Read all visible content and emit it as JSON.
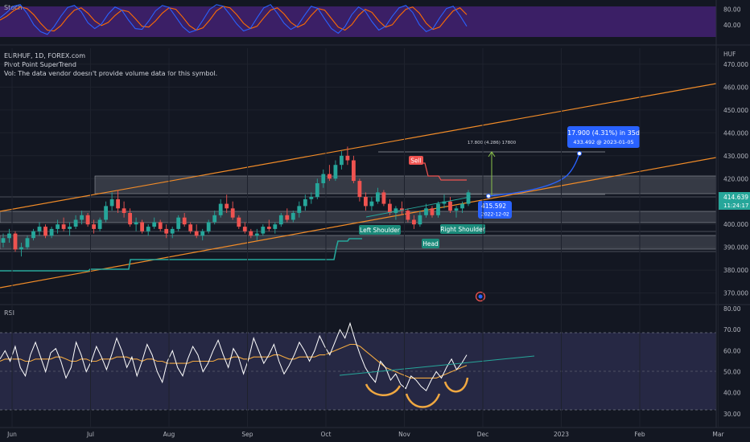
{
  "stoch_panel": {
    "label": "Stoch",
    "axis_ticks": [
      {
        "v": 80,
        "label": "80.00"
      },
      {
        "v": 40,
        "label": "40.00"
      }
    ],
    "k": [
      58,
      72,
      88,
      92,
      70,
      40,
      22,
      15,
      35,
      62,
      85,
      90,
      74,
      45,
      30,
      42,
      68,
      86,
      78,
      52,
      30,
      28,
      50,
      76,
      90,
      85,
      60,
      35,
      20,
      26,
      52,
      80,
      92,
      88,
      66,
      42,
      24,
      30,
      58,
      84,
      92,
      70,
      44,
      28,
      38,
      64,
      88,
      82,
      55,
      30,
      18,
      35,
      66,
      86,
      75,
      48,
      26,
      36,
      62,
      84,
      90,
      72,
      40,
      22,
      30,
      58,
      82,
      88,
      64,
      36
    ],
    "d": [
      52,
      62,
      76,
      86,
      82,
      66,
      44,
      26,
      24,
      38,
      60,
      78,
      84,
      70,
      50,
      38,
      46,
      64,
      78,
      74,
      56,
      36,
      34,
      50,
      70,
      84,
      80,
      60,
      38,
      26,
      32,
      52,
      76,
      88,
      84,
      66,
      44,
      30,
      36,
      58,
      78,
      84,
      68,
      46,
      34,
      42,
      64,
      82,
      78,
      56,
      34,
      26,
      40,
      64,
      80,
      72,
      50,
      34,
      40,
      62,
      80,
      86,
      70,
      44,
      28,
      34,
      56,
      76,
      84,
      66
    ]
  },
  "main_panel": {
    "symbol_line": "EURHUF, 1D, FOREX.com",
    "indicator_line": "Pivot Point SuperTrend",
    "vol_line": "Vol: The data vendor doesn't provide volume data for this symbol.",
    "price_unit": "HUF",
    "price_ticks": [
      {
        "v": 470,
        "label": "470.000"
      },
      {
        "v": 460,
        "label": "460.000"
      },
      {
        "v": 450,
        "label": "450.000"
      },
      {
        "v": 440,
        "label": "440.000"
      },
      {
        "v": 430,
        "label": "430.000"
      },
      {
        "v": 420,
        "label": "420.000"
      },
      {
        "v": 400,
        "label": "400.000"
      },
      {
        "v": 390,
        "label": "390.000"
      },
      {
        "v": 380,
        "label": "380.000"
      },
      {
        "v": 370,
        "label": "370.000"
      }
    ],
    "last_price": {
      "price": "414.639",
      "countdown": "11:24:17",
      "color": "#26a69a"
    },
    "measure_box": {
      "line1": "17.900 (4.31%) in 35d",
      "line2": "433.492 @ 2023-01-05"
    },
    "measure_small_label": "17.800 (4.286) 17800",
    "point_box": {
      "line1": "415.592",
      "line2": "2022-12-02"
    },
    "sell_label": "Sell",
    "pattern_labels": {
      "left": "Left Shoulder",
      "head": "Head",
      "right": "Right Shoulder"
    }
  },
  "rsi_panel": {
    "label": "RSI",
    "axis_ticks": [
      {
        "v": 80,
        "label": "80.00"
      },
      {
        "v": 70,
        "label": "70.00"
      },
      {
        "v": 60,
        "label": "60.00"
      },
      {
        "v": 50,
        "label": "50.00"
      },
      {
        "v": 40,
        "label": "40.00"
      },
      {
        "v": 30,
        "label": "30.00"
      }
    ],
    "band_upper": 70,
    "band_lower": 30,
    "rsi": [
      56,
      60,
      55,
      62,
      52,
      48,
      58,
      64,
      57,
      50,
      59,
      61,
      55,
      47,
      52,
      64,
      58,
      50,
      55,
      62,
      57,
      51,
      58,
      66,
      60,
      52,
      57,
      48,
      55,
      63,
      58,
      50,
      45,
      55,
      60,
      52,
      48,
      56,
      62,
      58,
      50,
      54,
      60,
      65,
      58,
      52,
      61,
      57,
      49,
      56,
      66,
      60,
      54,
      58,
      63,
      55,
      49,
      53,
      58,
      64,
      60,
      55,
      60,
      67,
      62,
      58,
      64,
      70,
      66,
      73,
      65,
      58,
      52,
      48,
      45,
      55,
      52,
      46,
      49,
      44,
      42,
      48,
      46,
      43,
      41,
      46,
      50,
      47,
      52,
      56,
      51,
      54,
      58
    ],
    "rsi_ma": [
      55,
      56,
      56,
      56,
      56,
      55,
      55,
      56,
      56,
      56,
      56,
      57,
      57,
      56,
      55,
      55,
      56,
      56,
      55,
      55,
      56,
      56,
      56,
      57,
      57,
      57,
      56,
      56,
      55,
      56,
      56,
      55,
      55,
      54,
      54,
      54,
      54,
      54,
      55,
      55,
      55,
      55,
      55,
      56,
      56,
      56,
      57,
      57,
      56,
      56,
      57,
      57,
      57,
      57,
      58,
      58,
      57,
      56,
      56,
      57,
      57,
      57,
      57,
      58,
      58,
      59,
      60,
      61,
      62,
      63,
      63,
      62,
      60,
      58,
      56,
      54,
      52,
      51,
      50,
      49,
      48,
      47,
      47,
      47,
      47,
      47,
      47,
      48,
      49,
      50,
      51,
      52,
      53
    ]
  },
  "time_axis": {
    "labels": [
      "Jun",
      "Jul",
      "Aug",
      "Sep",
      "Oct",
      "Nov",
      "Dec",
      "2023",
      "Feb",
      "Mar"
    ]
  },
  "chart_data": [
    {
      "type": "line",
      "title": "Stoch",
      "ylim": [
        0,
        100
      ],
      "series": [
        {
          "name": "%K",
          "color": "#2962ff"
        },
        {
          "name": "%D",
          "color": "#ff6d00"
        }
      ],
      "note_values_in": "stoch_panel.k / stoch_panel.d"
    },
    {
      "type": "candlestick",
      "title": "EURHUF, 1D, FOREX.com",
      "ylim": [
        366,
        477
      ],
      "ylabel": "HUF",
      "last_price": 414.639,
      "candles": [
        [
          392,
          396,
          390,
          394
        ],
        [
          394,
          398,
          392,
          396
        ],
        [
          396,
          397,
          388,
          389
        ],
        [
          389,
          392,
          386,
          390
        ],
        [
          390,
          395,
          389,
          394
        ],
        [
          394,
          398,
          393,
          397
        ],
        [
          397,
          401,
          395,
          399
        ],
        [
          399,
          400,
          394,
          395
        ],
        [
          395,
          399,
          394,
          398
        ],
        [
          398,
          402,
          396,
          400
        ],
        [
          400,
          403,
          397,
          398
        ],
        [
          398,
          401,
          395,
          399
        ],
        [
          399,
          404,
          398,
          402
        ],
        [
          402,
          406,
          400,
          404
        ],
        [
          404,
          405,
          399,
          400
        ],
        [
          400,
          402,
          396,
          398
        ],
        [
          398,
          403,
          397,
          402
        ],
        [
          402,
          410,
          401,
          408
        ],
        [
          408,
          414,
          406,
          411
        ],
        [
          411,
          415,
          405,
          407
        ],
        [
          407,
          410,
          403,
          405
        ],
        [
          405,
          407,
          399,
          400
        ],
        [
          400,
          403,
          397,
          401
        ],
        [
          401,
          402,
          396,
          397
        ],
        [
          397,
          400,
          395,
          399
        ],
        [
          399,
          403,
          398,
          401
        ],
        [
          401,
          402,
          397,
          398
        ],
        [
          398,
          400,
          394,
          396
        ],
        [
          396,
          399,
          394,
          398
        ],
        [
          398,
          404,
          397,
          403
        ],
        [
          403,
          405,
          399,
          400
        ],
        [
          400,
          401,
          396,
          397
        ],
        [
          397,
          400,
          394,
          395
        ],
        [
          395,
          398,
          393,
          397
        ],
        [
          397,
          402,
          396,
          401
        ],
        [
          401,
          406,
          400,
          404
        ],
        [
          404,
          411,
          403,
          409
        ],
        [
          409,
          413,
          405,
          407
        ],
        [
          407,
          410,
          402,
          403
        ],
        [
          403,
          404,
          398,
          399
        ],
        [
          399,
          401,
          396,
          397
        ],
        [
          397,
          398,
          394,
          395
        ],
        [
          395,
          398,
          393,
          396
        ],
        [
          396,
          400,
          395,
          399
        ],
        [
          399,
          402,
          397,
          398
        ],
        [
          398,
          401,
          396,
          400
        ],
        [
          400,
          405,
          399,
          404
        ],
        [
          404,
          407,
          401,
          402
        ],
        [
          402,
          406,
          401,
          405
        ],
        [
          405,
          410,
          403,
          408
        ],
        [
          408,
          413,
          406,
          411
        ],
        [
          411,
          414,
          409,
          412
        ],
        [
          412,
          420,
          411,
          418
        ],
        [
          418,
          424,
          416,
          422
        ],
        [
          422,
          426,
          419,
          420
        ],
        [
          420,
          428,
          419,
          426
        ],
        [
          426,
          432,
          424,
          430
        ],
        [
          430,
          434,
          426,
          428
        ],
        [
          428,
          430,
          418,
          419
        ],
        [
          419,
          420,
          410,
          412
        ],
        [
          412,
          414,
          406,
          408
        ],
        [
          408,
          412,
          406,
          410
        ],
        [
          410,
          416,
          409,
          414
        ],
        [
          414,
          415,
          408,
          409
        ],
        [
          409,
          411,
          404,
          405
        ],
        [
          405,
          408,
          402,
          407
        ],
        [
          407,
          410,
          404,
          406
        ],
        [
          406,
          407,
          401,
          402
        ],
        [
          402,
          404,
          398,
          400
        ],
        [
          400,
          406,
          399,
          404
        ],
        [
          404,
          409,
          403,
          407
        ],
        [
          407,
          408,
          403,
          404
        ],
        [
          404,
          410,
          403,
          409
        ],
        [
          409,
          413,
          407,
          410
        ],
        [
          410,
          412,
          405,
          406
        ],
        [
          406,
          408,
          403,
          407
        ],
        [
          407,
          410,
          405,
          409
        ],
        [
          409,
          415,
          408,
          414
        ]
      ],
      "supertrend": {
        "color": "#26a69a"
      },
      "sell_signal": {
        "label": "Sell"
      },
      "measure": {
        "change": 17.9,
        "percent": 4.31,
        "days": 35,
        "target_price": 433.492,
        "target_date": "2023-01-05",
        "start_price": 415.592,
        "start_date": "2022-12-02"
      },
      "pattern": [
        "Left Shoulder",
        "Head",
        "Right Shoulder"
      ]
    },
    {
      "type": "line",
      "title": "RSI",
      "ylim": [
        25,
        80
      ],
      "series": [
        {
          "name": "RSI",
          "color": "#ffffff"
        },
        {
          "name": "RSI-based MA",
          "color": "#f0a841"
        }
      ],
      "bands": [
        70,
        50,
        30
      ],
      "note_values_in": "rsi_panel.rsi / rsi_panel.rsi_ma"
    }
  ]
}
